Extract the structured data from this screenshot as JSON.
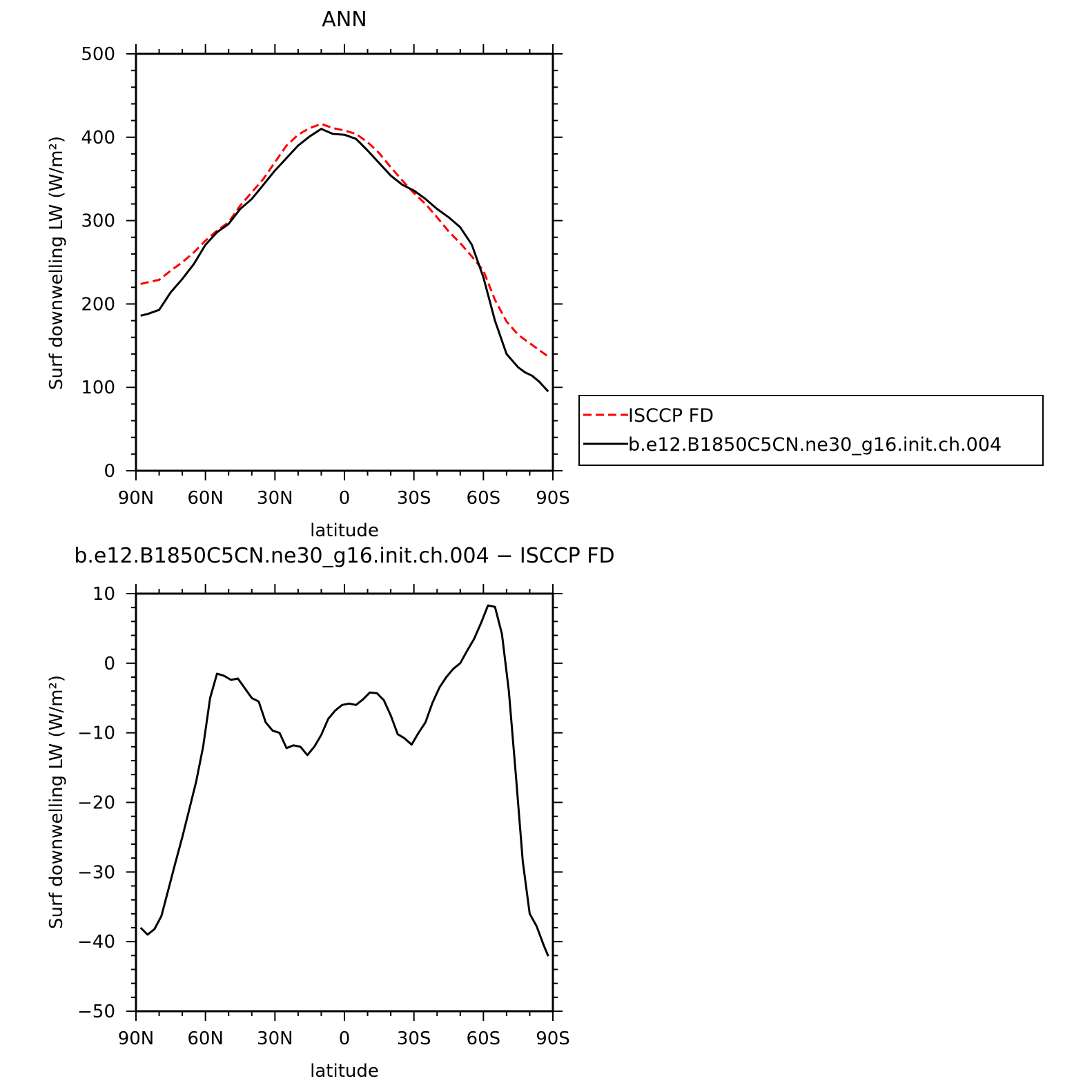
{
  "chart_data": [
    {
      "type": "line",
      "title": "ANN",
      "xlabel": "latitude",
      "ylabel": "Surf downwelling LW (W/m²)",
      "xlim": [
        90,
        -90
      ],
      "ylim": [
        0,
        500
      ],
      "xticks": [
        90,
        60,
        30,
        0,
        -30,
        -60,
        -90
      ],
      "xtick_labels": [
        "90N",
        "60N",
        "30N",
        "0",
        "30S",
        "60S",
        "90S"
      ],
      "yticks": [
        0,
        100,
        200,
        300,
        400,
        500
      ],
      "ytick_labels": [
        "0",
        "100",
        "200",
        "300",
        "400",
        "500"
      ],
      "legend_position": "right",
      "series": [
        {
          "name": "ISCCP FD",
          "color": "#ff0000",
          "style": "dashed",
          "x": [
            88,
            85,
            80,
            75,
            70,
            65,
            60,
            55,
            50,
            45,
            40,
            35,
            30,
            25,
            20,
            15,
            10,
            5,
            0,
            -5,
            -10,
            -15,
            -20,
            -25,
            -30,
            -35,
            -40,
            -45,
            -50,
            -55,
            -60,
            -65,
            -70,
            -75,
            -80,
            -85,
            -88
          ],
          "y": [
            224,
            226,
            229,
            240,
            250,
            262,
            276,
            288,
            298,
            318,
            334,
            350,
            370,
            390,
            403,
            411,
            416,
            411,
            408,
            404,
            394,
            381,
            364,
            348,
            333,
            320,
            304,
            287,
            273,
            257,
            240,
            205,
            179,
            163,
            153,
            143,
            137
          ]
        },
        {
          "name": "b.e12.B1850C5CN.ne30_g16.init.ch.004",
          "color": "#000000",
          "style": "solid",
          "x": [
            88,
            85,
            80,
            75,
            70,
            65,
            60,
            55,
            50,
            45,
            40,
            35,
            30,
            25,
            20,
            15,
            10,
            5,
            0,
            -5,
            -10,
            -15,
            -20,
            -25,
            -30,
            -35,
            -40,
            -45,
            -50,
            -55,
            -60,
            -65,
            -70,
            -75,
            -78,
            -81,
            -84,
            -86,
            -88
          ],
          "y": [
            186,
            188,
            193,
            214,
            230,
            248,
            271,
            286,
            296,
            314,
            326,
            343,
            360,
            375,
            390,
            401,
            410,
            404,
            403,
            398,
            384,
            369,
            354,
            343,
            336,
            326,
            314,
            304,
            292,
            271,
            232,
            180,
            140,
            124,
            118,
            114,
            107,
            101,
            95
          ]
        }
      ],
      "legend": {
        "entries": [
          {
            "label": "ISCCP FD"
          },
          {
            "label": "b.e12.B1850C5CN.ne30_g16.init.ch.004"
          }
        ]
      }
    },
    {
      "type": "line",
      "title": "b.e12.B1850C5CN.ne30_g16.init.ch.004 − ISCCP FD",
      "xlabel": "latitude",
      "ylabel": "Surf downwelling LW (W/m²)",
      "xlim": [
        90,
        -90
      ],
      "ylim": [
        -50,
        10
      ],
      "xticks": [
        90,
        60,
        30,
        0,
        -30,
        -60,
        -90
      ],
      "xtick_labels": [
        "90N",
        "60N",
        "30N",
        "0",
        "30S",
        "60S",
        "90S"
      ],
      "yticks": [
        -50,
        -40,
        -30,
        -20,
        -10,
        0,
        10
      ],
      "ytick_labels": [
        "−50",
        "−40",
        "−30",
        "−20",
        "−10",
        "0",
        "10"
      ],
      "series": [
        {
          "color": "#000000",
          "style": "solid",
          "x": [
            88,
            85,
            82,
            79,
            76,
            73,
            70,
            67,
            64,
            61,
            58,
            55,
            52,
            49,
            46,
            43,
            40,
            37,
            34,
            31,
            28,
            25,
            22,
            19,
            16,
            13,
            10,
            7,
            4,
            1,
            -2,
            -5,
            -8,
            -11,
            -14,
            -17,
            -20,
            -23,
            -26,
            -29,
            -32,
            -35,
            -38,
            -41,
            -44,
            -47,
            -50,
            -53,
            -56,
            -59,
            -62,
            -65,
            -68,
            -71,
            -74,
            -77,
            -80,
            -83,
            -86,
            -88
          ],
          "y": [
            -38,
            -39,
            -38.2,
            -36.3,
            -32.5,
            -28.7,
            -25,
            -21,
            -17,
            -12,
            -5,
            -1.5,
            -1.8,
            -2.4,
            -2.2,
            -3.6,
            -5,
            -5.5,
            -8.5,
            -9.7,
            -10,
            -12.2,
            -11.8,
            -12,
            -13.2,
            -12,
            -10.3,
            -8,
            -6.8,
            -6,
            -5.8,
            -6,
            -5.2,
            -4.2,
            -4.3,
            -5.3,
            -7.5,
            -10.2,
            -10.8,
            -11.7,
            -10,
            -8.5,
            -5.7,
            -3.5,
            -2,
            -0.8,
            0,
            1.8,
            3.5,
            5.8,
            8.3,
            8.1,
            4.2,
            -4,
            -16,
            -28.5,
            -36,
            -37.8,
            -40.5,
            -42.1
          ]
        }
      ]
    }
  ]
}
